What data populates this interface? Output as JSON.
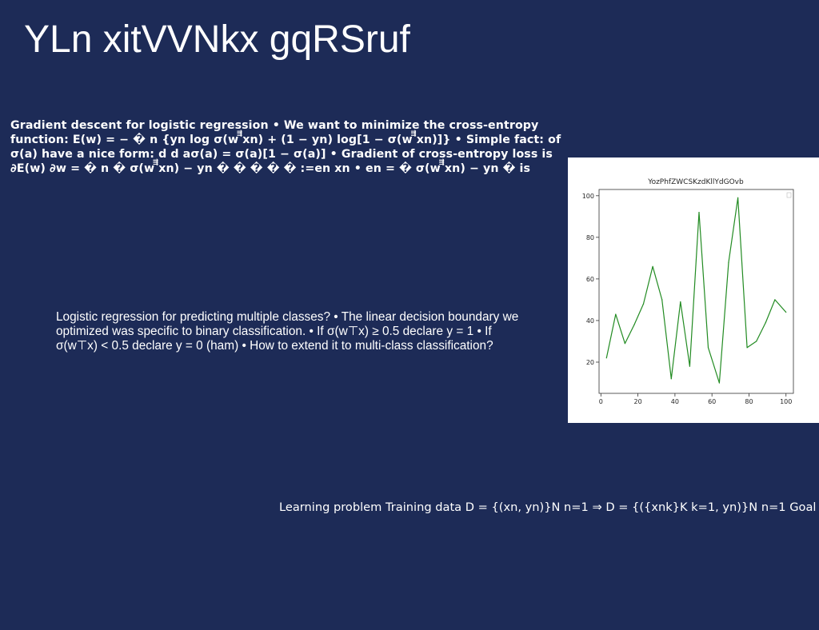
{
  "slide": {
    "title": "YLn xitVVNkx gqRSruf",
    "gradient_text": "Gradient descent for logistic regression • We want to minimize the cross-entropy function: E(w) = − � n {yn log σ(w ⃗⃗⃗⃗xn) + (1 − yn) log[1 − σ(w ⃗⃗⃗⃗xn)]} • Simple fact: of σ(a) have a nice form: d d aσ(a) = σ(a)[1 − σ(a)] • Gradient of cross-entropy loss is ∂E(w) ∂w = � n � σ(w ⃗⃗⃗⃗xn) − yn � � � � � :=en xn • en = � σ(w ⃗⃗⃗⃗xn) − yn � is",
    "multiclass_text": "Logistic regression for predicting multiple classes? • The linear decision boundary we optimized was specific to binary classification. • If σ(w⊤x) ≥ 0.5 declare y = 1 • If σ(w⊤x) < 0.5 declare y = 0 (ham) • How to extend it to multi-class classification?",
    "learning_text": "Learning problem Training data D = {(xn, yn)}N n=1 ⇒ D = {({xnk}K k=1, yn)}N n=1 Goal"
  },
  "colors": {
    "background": "#1d2b57",
    "text": "#ffffff",
    "chart_line": "#228b22",
    "chart_bg": "#ffffff",
    "axis": "#333333"
  },
  "chart_data": {
    "type": "line",
    "title": "YozPhfZWCSKzdKllYdGOvb",
    "xlabel": "",
    "ylabel": "",
    "x": [
      3,
      8,
      13,
      18,
      23,
      28,
      33,
      38,
      43,
      48,
      53,
      58,
      64,
      69,
      74,
      79,
      84,
      89,
      94,
      100
    ],
    "series": [
      {
        "name": "",
        "values": [
          22,
          43,
          29,
          38,
          48,
          66,
          50,
          12,
          49,
          18,
          92,
          27,
          10,
          68,
          99,
          27,
          30,
          39,
          50,
          44
        ]
      }
    ],
    "xlim": [
      -1,
      104
    ],
    "ylim": [
      5,
      103
    ],
    "xticks": [
      0,
      20,
      40,
      60,
      80,
      100
    ],
    "yticks": [
      20,
      40,
      60,
      80,
      100
    ],
    "grid": false,
    "legend": "top-right (empty)"
  }
}
